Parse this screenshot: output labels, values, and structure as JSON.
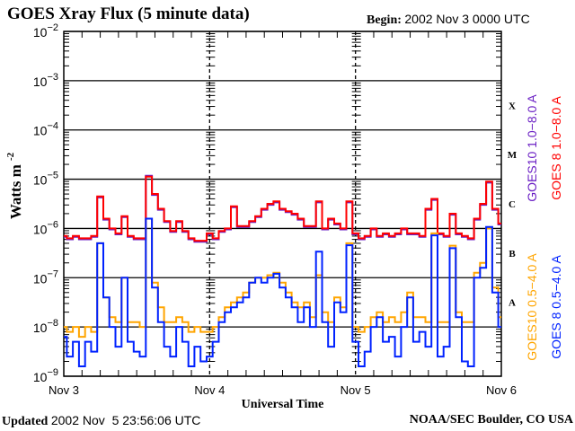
{
  "header": {
    "title": "GOES Xray Flux (5 minute data)",
    "begin_label": "Begin:",
    "begin_value": "2002 Nov 3 0000 UTC"
  },
  "footer": {
    "updated_label": "Updated",
    "updated_value": "2002 Nov  5 23:56:06 UTC",
    "credit": "NOAA/SEC Boulder, CO USA"
  },
  "chart_data": {
    "type": "line",
    "title": "GOES Xray Flux (5 minute data)",
    "xlabel": "Universal Time",
    "ylabel": "Watts m",
    "ylabel_superscript": "-2",
    "yscale": "log",
    "ylim_log10": [
      -9,
      -2
    ],
    "y_ticks": [
      {
        "base": "10",
        "exp": "-2"
      },
      {
        "base": "10",
        "exp": "-3"
      },
      {
        "base": "10",
        "exp": "-4"
      },
      {
        "base": "10",
        "exp": "-5"
      },
      {
        "base": "10",
        "exp": "-6"
      },
      {
        "base": "10",
        "exp": "-7"
      },
      {
        "base": "10",
        "exp": "-8"
      },
      {
        "base": "10",
        "exp": "-9"
      }
    ],
    "x_ticks": [
      "Nov 3",
      "Nov 4",
      "Nov 5",
      "Nov 6"
    ],
    "xlim_hours": [
      0,
      72
    ],
    "flare_classes": [
      {
        "label": "X",
        "log10_mid": -3.5
      },
      {
        "label": "M",
        "log10_mid": -4.5
      },
      {
        "label": "C",
        "log10_mid": -5.5
      },
      {
        "label": "B",
        "log10_mid": -6.5
      },
      {
        "label": "A",
        "log10_mid": -7.5
      }
    ],
    "x_hours": [
      0,
      1,
      2,
      3,
      4,
      5,
      6,
      7,
      8,
      9,
      10,
      11,
      12,
      13,
      14,
      15,
      16,
      17,
      18,
      19,
      20,
      21,
      22,
      23,
      24,
      25,
      26,
      27,
      28,
      29,
      30,
      31,
      32,
      33,
      34,
      35,
      36,
      37,
      38,
      39,
      40,
      41,
      42,
      43,
      44,
      45,
      46,
      47,
      48,
      49,
      50,
      51,
      52,
      53,
      54,
      55,
      56,
      57,
      58,
      59,
      60,
      61,
      62,
      63,
      64,
      65,
      66,
      67,
      68,
      69,
      70,
      71,
      72
    ],
    "series": [
      {
        "name": "GOES10 1.0-8.0 A",
        "legend": "GOES10 1.0−8.0 A",
        "color": "#6a1fc4",
        "draw_order": 1,
        "log10_flux": [
          -6.17,
          -6.22,
          -6.17,
          -6.22,
          -6.22,
          -6.17,
          -5.37,
          -5.82,
          -6.02,
          -6.12,
          -5.77,
          -6.17,
          -6.22,
          -6.22,
          -4.93,
          -5.32,
          -5.62,
          -5.87,
          -6.07,
          -5.87,
          -6.07,
          -6.22,
          -6.27,
          -6.27,
          -6.12,
          -6.22,
          -6.07,
          -6.02,
          -5.57,
          -5.97,
          -5.97,
          -5.87,
          -5.77,
          -5.62,
          -5.52,
          -5.47,
          -5.62,
          -5.67,
          -5.72,
          -5.82,
          -5.97,
          -5.97,
          -5.47,
          -6.02,
          -5.82,
          -5.92,
          -6.02,
          -5.47,
          -6.12,
          -6.22,
          -6.17,
          -6.02,
          -6.17,
          -6.12,
          -6.17,
          -6.12,
          -6.02,
          -6.12,
          -6.12,
          -6.17,
          -5.62,
          -5.42,
          -6.12,
          -6.17,
          -5.72,
          -6.12,
          -6.17,
          -6.22,
          -5.82,
          -5.52,
          -5.07,
          -5.62,
          -5.92
        ]
      },
      {
        "name": "GOES 8 1.0-8.0 A",
        "legend": "GOES 8 1.0−8.0 A",
        "color": "#ff0000",
        "draw_order": 2,
        "log10_flux": [
          -6.15,
          -6.2,
          -6.15,
          -6.2,
          -6.2,
          -6.15,
          -5.35,
          -5.8,
          -6.0,
          -6.1,
          -5.75,
          -6.15,
          -6.2,
          -6.2,
          -4.95,
          -5.3,
          -5.6,
          -5.85,
          -6.05,
          -5.85,
          -6.05,
          -6.2,
          -6.25,
          -6.25,
          -6.1,
          -6.2,
          -6.05,
          -6.0,
          -5.55,
          -5.95,
          -5.95,
          -5.85,
          -5.75,
          -5.6,
          -5.5,
          -5.45,
          -5.6,
          -5.65,
          -5.7,
          -5.8,
          -5.95,
          -5.95,
          -5.45,
          -6.0,
          -5.8,
          -5.9,
          -6.0,
          -5.45,
          -6.1,
          -6.2,
          -6.15,
          -6.0,
          -6.15,
          -6.1,
          -6.15,
          -6.1,
          -6.0,
          -6.1,
          -6.1,
          -6.15,
          -5.6,
          -5.4,
          -6.1,
          -6.15,
          -5.7,
          -6.1,
          -6.15,
          -6.2,
          -5.8,
          -5.5,
          -5.05,
          -5.6,
          -5.9
        ]
      },
      {
        "name": "GOES10 0.5-4.0 A",
        "legend": "GOES10 0.5−4.0 A",
        "color": "#ffa500",
        "draw_order": 3,
        "log10_flux": [
          -8.0,
          -8.1,
          -8.0,
          -8.2,
          -8.0,
          -8.1,
          -6.3,
          -7.4,
          -7.8,
          -7.9,
          -7.0,
          -7.9,
          -7.9,
          -8.0,
          -5.8,
          -7.1,
          -7.6,
          -7.9,
          -7.9,
          -7.8,
          -7.9,
          -8.1,
          -8.0,
          -8.1,
          -8.1,
          -8.0,
          -7.8,
          -7.6,
          -7.5,
          -7.4,
          -7.3,
          -7.1,
          -7.0,
          -7.0,
          -6.95,
          -6.9,
          -7.1,
          -7.3,
          -7.5,
          -7.6,
          -7.5,
          -7.8,
          -6.95,
          -7.7,
          -7.9,
          -7.4,
          -7.6,
          -6.3,
          -8.0,
          -8.1,
          -8.0,
          -7.8,
          -7.7,
          -7.9,
          -7.8,
          -7.9,
          -7.7,
          -7.3,
          -7.8,
          -7.8,
          -7.9,
          -6.1,
          -7.9,
          -7.9,
          -6.35,
          -7.7,
          -7.9,
          -7.9,
          -6.9,
          -6.7,
          -6.0,
          -7.2,
          -7.8
        ]
      },
      {
        "name": "GOES 8 0.5-4.0 A",
        "legend": "GOES 8 0.5−4.0 A",
        "color": "#0022ff",
        "draw_order": 4,
        "log10_flux": [
          -8.2,
          -8.6,
          -8.3,
          -8.8,
          -8.3,
          -8.5,
          -6.3,
          -7.4,
          -8.0,
          -8.4,
          -7.0,
          -8.3,
          -8.5,
          -8.6,
          -5.8,
          -7.2,
          -7.9,
          -8.4,
          -8.6,
          -8.0,
          -8.3,
          -8.8,
          -8.4,
          -8.7,
          -8.6,
          -8.3,
          -7.9,
          -7.7,
          -7.6,
          -7.5,
          -7.4,
          -7.1,
          -7.0,
          -7.1,
          -7.0,
          -6.92,
          -7.2,
          -7.4,
          -7.6,
          -7.9,
          -7.6,
          -8.0,
          -6.47,
          -7.9,
          -8.4,
          -7.5,
          -7.7,
          -6.34,
          -8.3,
          -8.8,
          -8.5,
          -8.0,
          -7.8,
          -8.3,
          -8.2,
          -8.6,
          -8.0,
          -7.4,
          -8.3,
          -8.1,
          -8.4,
          -6.14,
          -8.6,
          -8.4,
          -6.4,
          -7.8,
          -8.7,
          -8.8,
          -7.0,
          -6.8,
          -5.97,
          -7.3,
          -8.0
        ]
      }
    ],
    "legend_placement": "right, rotated"
  }
}
